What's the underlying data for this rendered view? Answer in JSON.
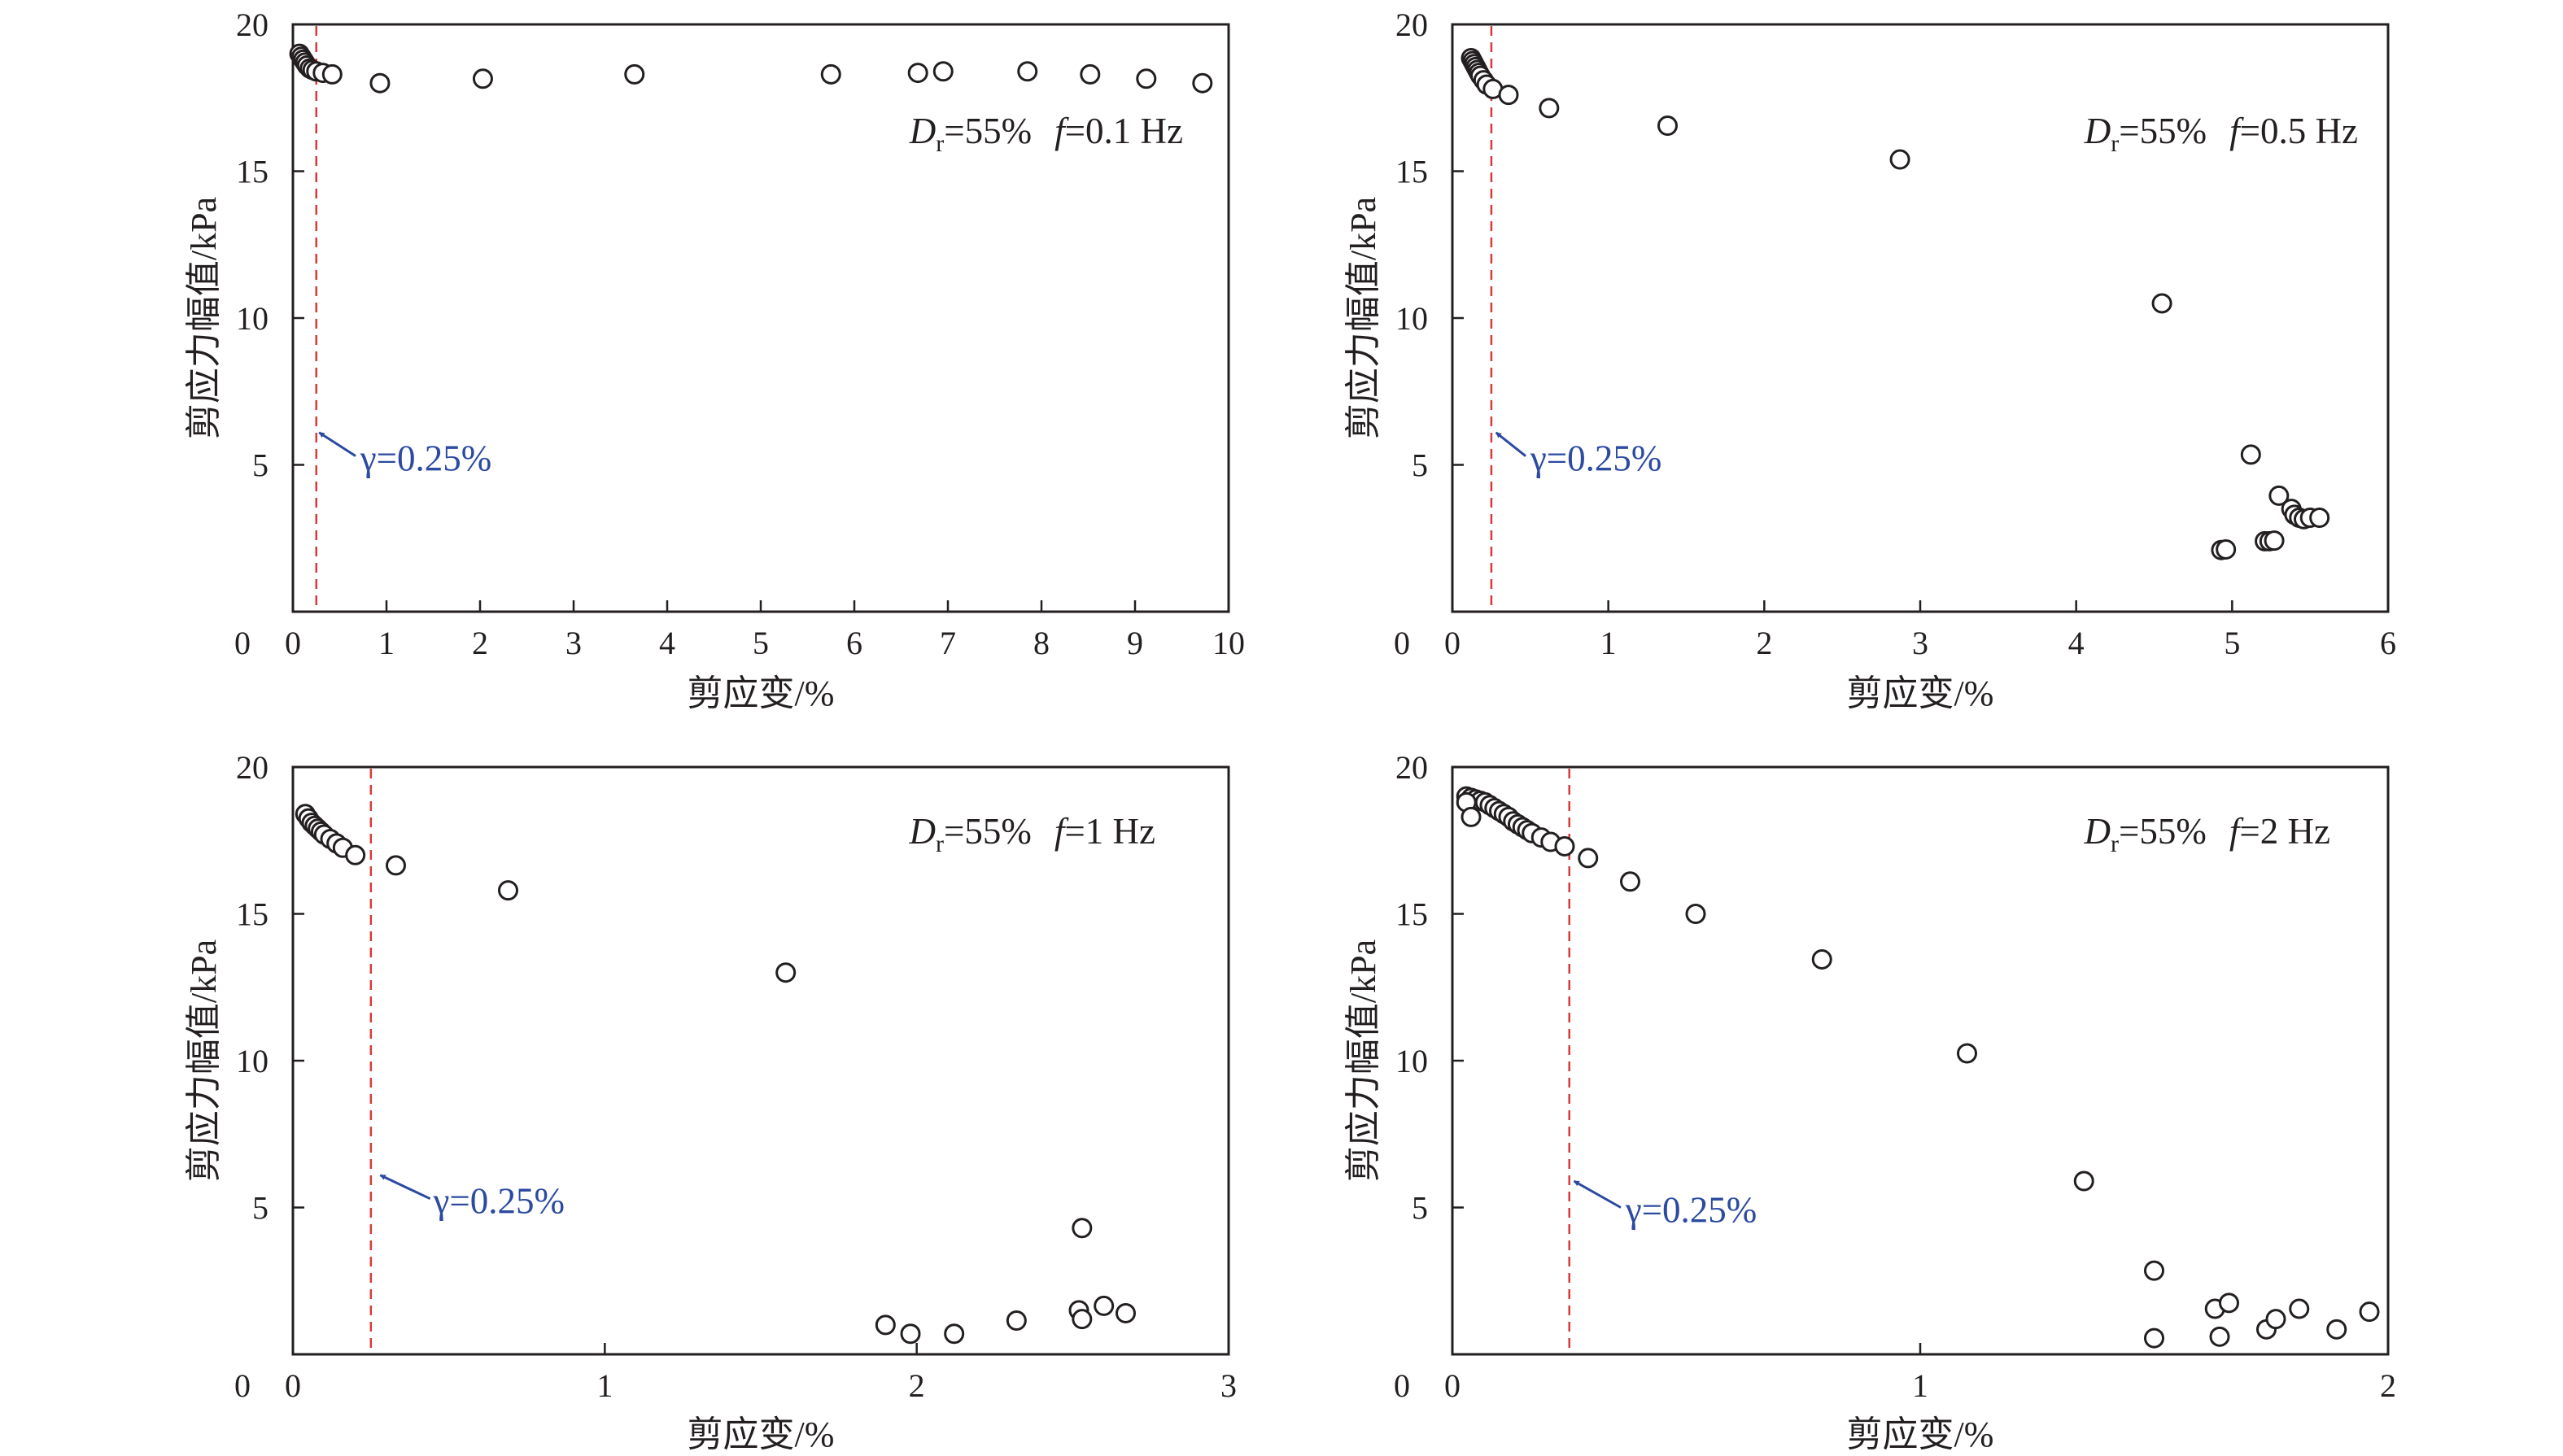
{
  "colors": {
    "axis": "#231f20",
    "marker_stroke": "#231f20",
    "marker_fill": "#ffffff",
    "reference_line": "#d83a3a",
    "arrow": "#2b4aa0",
    "arrow_label": "#2b4aa0"
  },
  "chart_data": [
    {
      "type": "scatter",
      "id": "p1",
      "annotation": {
        "dr_sym": "D",
        "dr_sub": "r",
        "dr_val": "=55%",
        "f_sym": "f",
        "f_val": "=0.1 Hz"
      },
      "xlabel": "剪应变/%",
      "ylabel": "剪应力幅值/kPa",
      "xlim": [
        0,
        10
      ],
      "ylim": [
        0,
        20
      ],
      "xticks": [
        "0",
        "1",
        "2",
        "3",
        "4",
        "5",
        "6",
        "7",
        "8",
        "9",
        "10"
      ],
      "yticks": [
        "0",
        "5",
        "10",
        "15",
        "20"
      ],
      "reference": {
        "x": 0.25,
        "label": "γ=0.25%",
        "text_at": [
          0.72,
          4.8
        ],
        "arrow_from": [
          0.67,
          5.3
        ],
        "arrow_to": [
          0.28,
          6.1
        ]
      },
      "points": [
        [
          0.07,
          19.0
        ],
        [
          0.09,
          18.9
        ],
        [
          0.11,
          18.8
        ],
        [
          0.13,
          18.7
        ],
        [
          0.15,
          18.6
        ],
        [
          0.18,
          18.5
        ],
        [
          0.21,
          18.45
        ],
        [
          0.25,
          18.4
        ],
        [
          0.32,
          18.35
        ],
        [
          0.42,
          18.3
        ],
        [
          0.93,
          18.0
        ],
        [
          2.03,
          18.15
        ],
        [
          3.65,
          18.3
        ],
        [
          5.75,
          18.3
        ],
        [
          6.68,
          18.35
        ],
        [
          6.95,
          18.4
        ],
        [
          7.85,
          18.4
        ],
        [
          8.52,
          18.3
        ],
        [
          9.12,
          18.15
        ],
        [
          9.72,
          18.0
        ]
      ]
    },
    {
      "type": "scatter",
      "id": "p2",
      "annotation": {
        "dr_sym": "D",
        "dr_sub": "r",
        "dr_val": "=55%",
        "f_sym": "f",
        "f_val": "=0.5 Hz"
      },
      "xlabel": "剪应变/%",
      "ylabel": "剪应力幅值/kPa",
      "xlim": [
        0,
        6
      ],
      "ylim": [
        0,
        20
      ],
      "xticks": [
        "0",
        "1",
        "2",
        "3",
        "4",
        "5",
        "6"
      ],
      "yticks": [
        "0",
        "5",
        "10",
        "15",
        "20"
      ],
      "reference": {
        "x": 0.25,
        "label": "γ=0.25%",
        "text_at": [
          0.5,
          4.8
        ],
        "arrow_from": [
          0.47,
          5.3
        ],
        "arrow_to": [
          0.28,
          6.1
        ]
      },
      "points": [
        [
          0.12,
          18.85
        ],
        [
          0.13,
          18.75
        ],
        [
          0.14,
          18.65
        ],
        [
          0.15,
          18.55
        ],
        [
          0.16,
          18.45
        ],
        [
          0.17,
          18.35
        ],
        [
          0.18,
          18.25
        ],
        [
          0.2,
          18.1
        ],
        [
          0.22,
          17.95
        ],
        [
          0.26,
          17.8
        ],
        [
          0.36,
          17.6
        ],
        [
          0.62,
          17.15
        ],
        [
          1.38,
          16.55
        ],
        [
          2.87,
          15.4
        ],
        [
          4.55,
          10.5
        ],
        [
          5.12,
          5.35
        ],
        [
          5.3,
          3.95
        ],
        [
          5.38,
          3.5
        ],
        [
          5.4,
          3.3
        ],
        [
          5.43,
          3.2
        ],
        [
          5.46,
          3.15
        ],
        [
          5.5,
          3.2
        ],
        [
          5.56,
          3.2
        ],
        [
          5.21,
          2.4
        ],
        [
          5.24,
          2.4
        ],
        [
          5.27,
          2.42
        ],
        [
          4.93,
          2.1
        ],
        [
          4.96,
          2.12
        ]
      ]
    },
    {
      "type": "scatter",
      "id": "p3",
      "annotation": {
        "dr_sym": "D",
        "dr_sub": "r",
        "dr_val": "=55%",
        "f_sym": "f",
        "f_val": "=1 Hz"
      },
      "xlabel": "剪应变/%",
      "ylabel": "剪应力幅值/kPa",
      "xlim": [
        0,
        3
      ],
      "ylim": [
        0,
        20
      ],
      "xticks": [
        "0",
        "1",
        "2",
        "3"
      ],
      "yticks": [
        "0",
        "5",
        "10",
        "15",
        "20"
      ],
      "reference": {
        "x": 0.25,
        "label": "γ=0.25%",
        "text_at": [
          0.45,
          4.8
        ],
        "arrow_from": [
          0.44,
          5.3
        ],
        "arrow_to": [
          0.28,
          6.1
        ]
      },
      "points": [
        [
          0.04,
          18.4
        ],
        [
          0.05,
          18.25
        ],
        [
          0.06,
          18.1
        ],
        [
          0.07,
          18.0
        ],
        [
          0.08,
          17.9
        ],
        [
          0.09,
          17.8
        ],
        [
          0.1,
          17.7
        ],
        [
          0.12,
          17.55
        ],
        [
          0.14,
          17.4
        ],
        [
          0.16,
          17.25
        ],
        [
          0.2,
          17.0
        ],
        [
          0.33,
          16.65
        ],
        [
          0.69,
          15.8
        ],
        [
          1.58,
          13.0
        ],
        [
          1.9,
          1.0
        ],
        [
          1.98,
          0.7
        ],
        [
          2.12,
          0.7
        ],
        [
          2.32,
          1.15
        ],
        [
          2.52,
          1.5
        ],
        [
          2.53,
          1.2
        ],
        [
          2.6,
          1.65
        ],
        [
          2.67,
          1.4
        ],
        [
          2.53,
          4.3
        ]
      ]
    },
    {
      "type": "scatter",
      "id": "p4",
      "annotation": {
        "dr_sym": "D",
        "dr_sub": "r",
        "dr_val": "=55%",
        "f_sym": "f",
        "f_val": "=2 Hz"
      },
      "xlabel": "剪应变/%",
      "ylabel": "剪应力幅值/kPa",
      "xlim": [
        0,
        2
      ],
      "ylim": [
        0,
        20
      ],
      "xticks": [
        "0",
        "1",
        "2"
      ],
      "yticks": [
        "0",
        "5",
        "10",
        "15",
        "20"
      ],
      "reference": {
        "x": 0.25,
        "label": "γ=0.25%",
        "text_at": [
          0.37,
          4.5
        ],
        "arrow_from": [
          0.36,
          5.0
        ],
        "arrow_to": [
          0.26,
          5.9
        ]
      },
      "points": [
        [
          0.03,
          19.0
        ],
        [
          0.04,
          18.95
        ],
        [
          0.05,
          18.9
        ],
        [
          0.06,
          18.85
        ],
        [
          0.07,
          18.8
        ],
        [
          0.08,
          18.7
        ],
        [
          0.09,
          18.6
        ],
        [
          0.1,
          18.5
        ],
        [
          0.11,
          18.4
        ],
        [
          0.12,
          18.3
        ],
        [
          0.13,
          18.15
        ],
        [
          0.14,
          18.05
        ],
        [
          0.15,
          17.95
        ],
        [
          0.16,
          17.85
        ],
        [
          0.17,
          17.75
        ],
        [
          0.19,
          17.6
        ],
        [
          0.21,
          17.45
        ],
        [
          0.24,
          17.3
        ],
        [
          0.03,
          18.8
        ],
        [
          0.04,
          18.3
        ],
        [
          0.29,
          16.9
        ],
        [
          0.38,
          16.1
        ],
        [
          0.52,
          15.0
        ],
        [
          0.79,
          13.45
        ],
        [
          1.1,
          10.25
        ],
        [
          1.35,
          5.9
        ],
        [
          1.5,
          2.85
        ],
        [
          1.5,
          0.55
        ],
        [
          1.63,
          1.55
        ],
        [
          1.64,
          0.6
        ],
        [
          1.66,
          1.75
        ],
        [
          1.74,
          0.85
        ],
        [
          1.76,
          1.2
        ],
        [
          1.81,
          1.55
        ],
        [
          1.89,
          0.85
        ],
        [
          1.96,
          1.45
        ]
      ]
    }
  ]
}
